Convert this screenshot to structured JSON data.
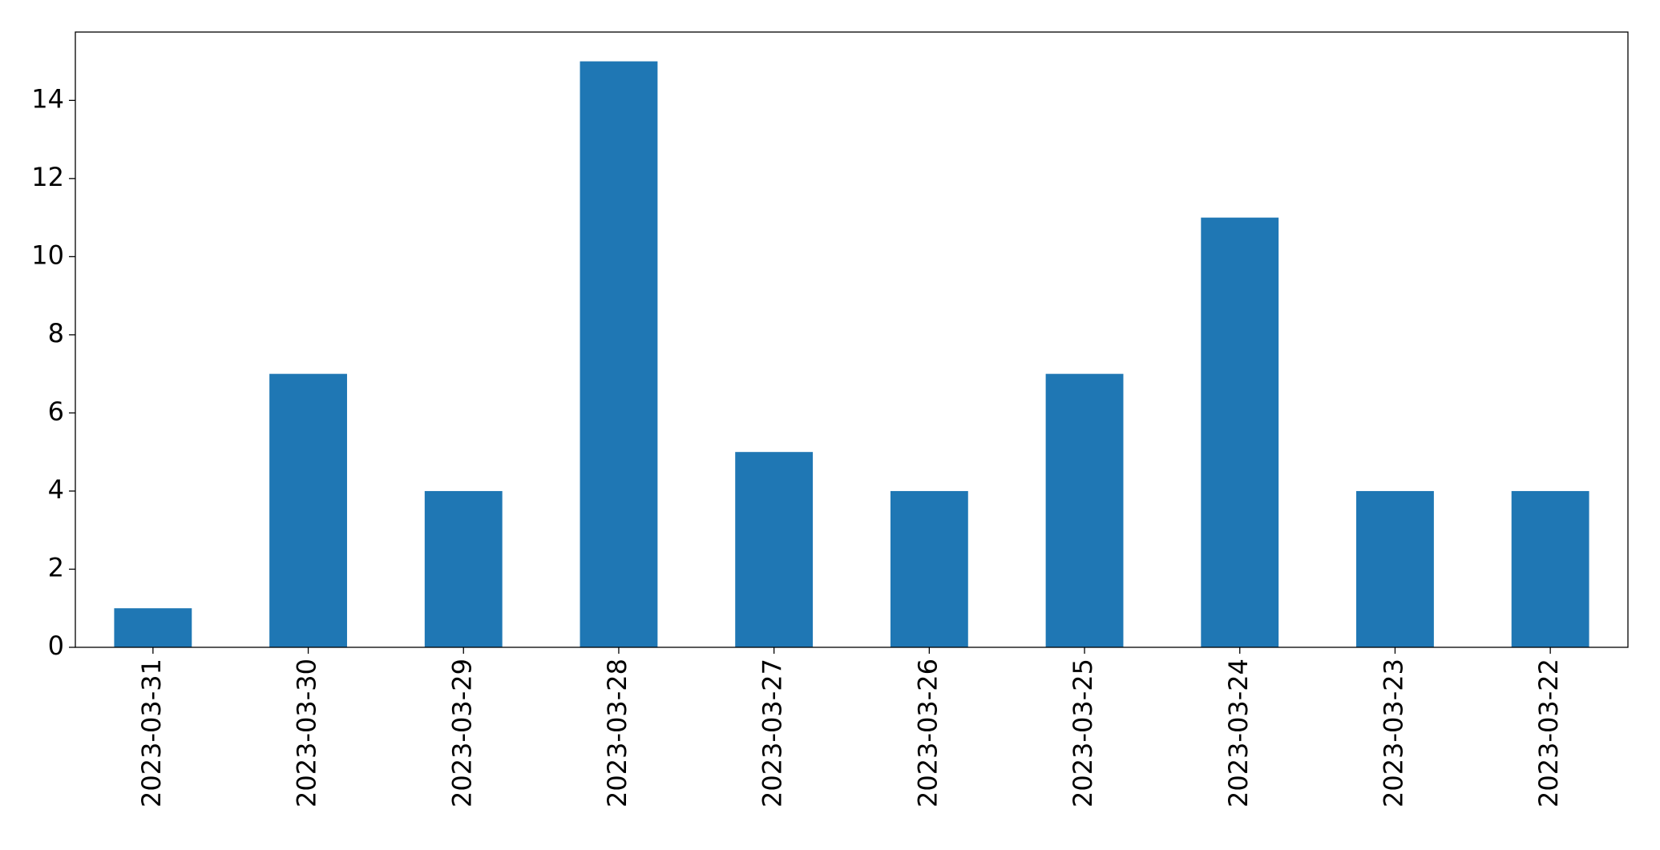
{
  "chart_data": {
    "type": "bar",
    "categories": [
      "2023-03-31",
      "2023-03-30",
      "2023-03-29",
      "2023-03-28",
      "2023-03-27",
      "2023-03-26",
      "2023-03-25",
      "2023-03-24",
      "2023-03-23",
      "2023-03-22"
    ],
    "values": [
      1,
      7,
      4,
      15,
      5,
      4,
      7,
      11,
      4,
      4
    ],
    "color": "#1f77b4",
    "ylim": [
      0,
      15.75
    ],
    "yticks": [
      0,
      2,
      4,
      6,
      8,
      10,
      12,
      14
    ],
    "grid": false
  }
}
